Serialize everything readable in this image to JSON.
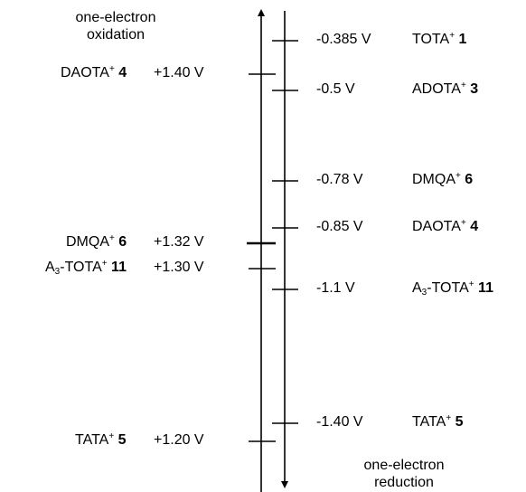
{
  "headers": {
    "oxidation": [
      "one-electron",
      "oxidation"
    ],
    "reduction": [
      "one-electron",
      "reduction"
    ]
  },
  "oxidation": [
    {
      "pre": "DAOTA",
      "sub": "",
      "post": "",
      "num": "4",
      "value": "+1.40 V",
      "v": 1.4
    },
    {
      "pre": "DMQA",
      "sub": "",
      "post": "",
      "num": "6",
      "value": "+1.32 V",
      "v": 1.32
    },
    {
      "pre": "A",
      "sub": "3",
      "post": "-TOTA",
      "num": "11",
      "value": "+1.30 V",
      "v": 1.3
    },
    {
      "pre": "TATA",
      "sub": "",
      "post": "",
      "num": "5",
      "value": "+1.20 V",
      "v": 1.2
    }
  ],
  "reduction": [
    {
      "value": "-0.385 V",
      "pre": "TOTA",
      "sub": "",
      "post": "",
      "num": "1",
      "v": -0.385
    },
    {
      "value": "-0.5 V",
      "pre": "ADOTA",
      "sub": "",
      "post": "",
      "num": "3",
      "v": -0.5
    },
    {
      "value": "-0.78 V",
      "pre": "DMQA",
      "sub": "",
      "post": "",
      "num": "6",
      "v": -0.78
    },
    {
      "value": "-0.85 V",
      "pre": "DAOTA",
      "sub": "",
      "post": "",
      "num": "4",
      "v": -0.85
    },
    {
      "value": "-1.1 V",
      "pre": "A",
      "sub": "3",
      "post": "-TOTA",
      "num": "11",
      "v": -1.1
    },
    {
      "value": "-1.40 V",
      "pre": "TATA",
      "sub": "",
      "post": "",
      "num": "5",
      "v": -1.4
    }
  ],
  "cation_superscript": "+"
}
